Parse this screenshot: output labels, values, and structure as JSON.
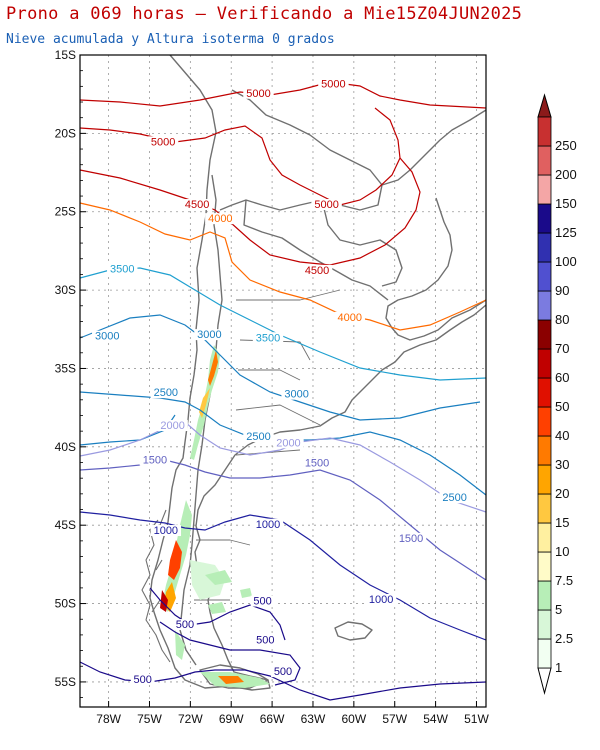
{
  "title": "Prono a 069 horas — Verificando a Mie15Z04JUN2025",
  "subtitle": "Nieve acumulada y Altura isoterma 0 grados",
  "lat_ticks": [
    {
      "label": "15S",
      "lat": -15
    },
    {
      "label": "20S",
      "lat": -20
    },
    {
      "label": "25S",
      "lat": -25
    },
    {
      "label": "30S",
      "lat": -30
    },
    {
      "label": "35S",
      "lat": -35
    },
    {
      "label": "40S",
      "lat": -40
    },
    {
      "label": "45S",
      "lat": -45
    },
    {
      "label": "50S",
      "lat": -50
    },
    {
      "label": "55S",
      "lat": -55
    }
  ],
  "lon_ticks": [
    {
      "label": "78W",
      "lon": -78
    },
    {
      "label": "75W",
      "lon": -75
    },
    {
      "label": "72W",
      "lon": -72
    },
    {
      "label": "69W",
      "lon": -69
    },
    {
      "label": "66W",
      "lon": -66
    },
    {
      "label": "63W",
      "lon": -63
    },
    {
      "label": "60W",
      "lon": -60
    },
    {
      "label": "57W",
      "lon": -57
    },
    {
      "label": "54W",
      "lon": -54
    },
    {
      "label": "51W",
      "lon": -51
    }
  ],
  "colorbar": {
    "levels": [
      {
        "label": "1",
        "color": "#f2fff2"
      },
      {
        "label": "2.5",
        "color": "#d8f7d8"
      },
      {
        "label": "5",
        "color": "#b7eeb7"
      },
      {
        "label": "7.5",
        "color": "#fffbc8"
      },
      {
        "label": "10",
        "color": "#fff0a0"
      },
      {
        "label": "15",
        "color": "#ffc840"
      },
      {
        "label": "20",
        "color": "#ffa500"
      },
      {
        "label": "30",
        "color": "#ff7a00"
      },
      {
        "label": "40",
        "color": "#ff4000"
      },
      {
        "label": "50",
        "color": "#e01000"
      },
      {
        "label": "60",
        "color": "#c00000"
      },
      {
        "label": "70",
        "color": "#8b0000"
      },
      {
        "label": "80",
        "color": "#7b7be0"
      },
      {
        "label": "90",
        "color": "#5050d0"
      },
      {
        "label": "100",
        "color": "#3030b0"
      },
      {
        "label": "125",
        "color": "#1a0a8a"
      },
      {
        "label": "150",
        "color": "#f4a6a6"
      },
      {
        "label": "200",
        "color": "#e06060"
      },
      {
        "label": "250",
        "color": "#c83030"
      }
    ],
    "top_triangle_color": "#8b1a1a",
    "bottom_triangle_color": "#ffffff"
  },
  "isotherm_labels": [
    {
      "text": "5000",
      "color": "#c00000",
      "lon": -67.0,
      "lat": -17.6
    },
    {
      "text": "5000",
      "color": "#c00000",
      "lon": -61.5,
      "lat": -17.0
    },
    {
      "text": "5000",
      "color": "#c00000",
      "lon": -74.0,
      "lat": -20.7
    },
    {
      "text": "5000",
      "color": "#c00000",
      "lon": -62.0,
      "lat": -24.7
    },
    {
      "text": "4500",
      "color": "#c00000",
      "lon": -71.5,
      "lat": -24.7
    },
    {
      "text": "4500",
      "color": "#c00000",
      "lon": -62.7,
      "lat": -28.9
    },
    {
      "text": "4000",
      "color": "#ff6a00",
      "lon": -69.8,
      "lat": -25.6
    },
    {
      "text": "4000",
      "color": "#ff6a00",
      "lon": -60.3,
      "lat": -31.9
    },
    {
      "text": "3500",
      "color": "#20a0d0",
      "lon": -77.0,
      "lat": -28.8
    },
    {
      "text": "3500",
      "color": "#20a0d0",
      "lon": -66.3,
      "lat": -33.2
    },
    {
      "text": "3000",
      "color": "#1a7fc0",
      "lon": -78.1,
      "lat": -33.1
    },
    {
      "text": "3000",
      "color": "#1a7fc0",
      "lon": -70.6,
      "lat": -33.0
    },
    {
      "text": "3000",
      "color": "#1a7fc0",
      "lon": -64.2,
      "lat": -36.8
    },
    {
      "text": "2500",
      "color": "#1a7fc0",
      "lon": -73.8,
      "lat": -36.7
    },
    {
      "text": "2500",
      "color": "#1a7fc0",
      "lon": -67.0,
      "lat": -39.5
    },
    {
      "text": "2500",
      "color": "#1a7fc0",
      "lon": -52.6,
      "lat": -43.4
    },
    {
      "text": "2000",
      "color": "#9a9ae0",
      "lon": -73.3,
      "lat": -38.8
    },
    {
      "text": "2000",
      "color": "#9a9ae0",
      "lon": -64.8,
      "lat": -39.9
    },
    {
      "text": "1500",
      "color": "#6060c0",
      "lon": -74.6,
      "lat": -41.0
    },
    {
      "text": "1500",
      "color": "#6060c0",
      "lon": -62.7,
      "lat": -41.2
    },
    {
      "text": "1500",
      "color": "#6060c0",
      "lon": -55.8,
      "lat": -46.0
    },
    {
      "text": "1000",
      "color": "#2020a0",
      "lon": -73.8,
      "lat": -45.5
    },
    {
      "text": "1000",
      "color": "#2020a0",
      "lon": -66.3,
      "lat": -45.1
    },
    {
      "text": "1000",
      "color": "#2020a0",
      "lon": -58.0,
      "lat": -49.9
    },
    {
      "text": "500",
      "color": "#1a0a8a",
      "lon": -66.7,
      "lat": -50.0
    },
    {
      "text": "500",
      "color": "#1a0a8a",
      "lon": -72.4,
      "lat": -51.5
    },
    {
      "text": "500",
      "color": "#1a0a8a",
      "lon": -66.5,
      "lat": -52.5
    },
    {
      "text": "500",
      "color": "#1a0a8a",
      "lon": -75.5,
      "lat": -55.0
    },
    {
      "text": "500",
      "color": "#1a0a8a",
      "lon": -65.2,
      "lat": -54.5
    }
  ],
  "colors": {
    "frame": "#000000",
    "grid": "#999999",
    "borders": "#707070"
  }
}
